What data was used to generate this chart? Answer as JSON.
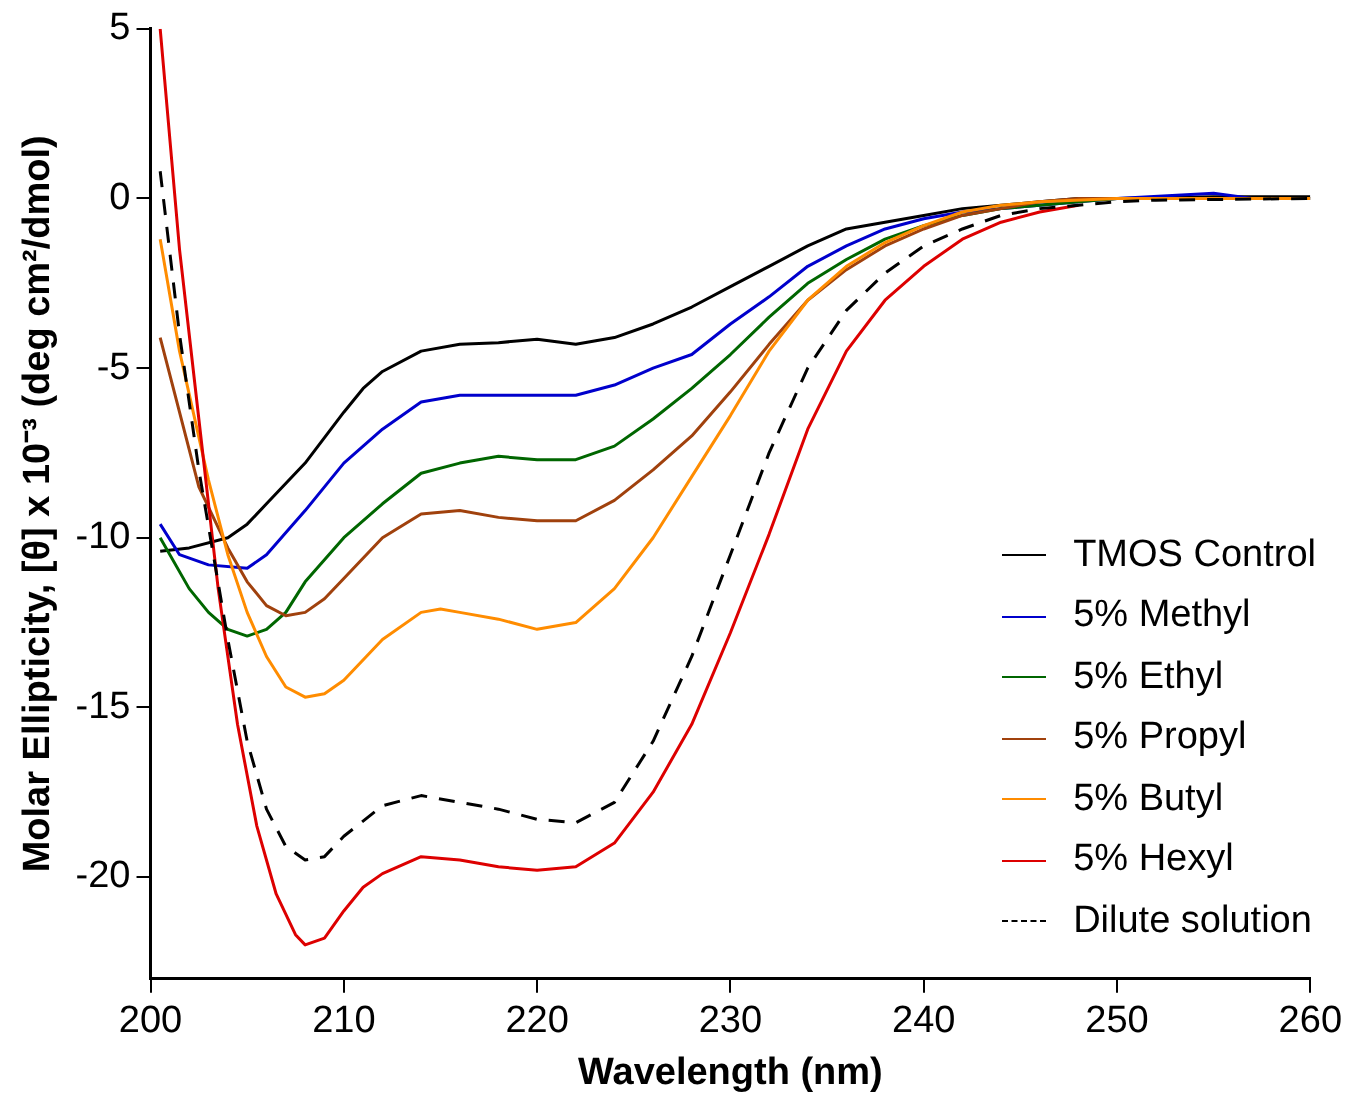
{
  "chart_data": {
    "type": "line",
    "xlabel": "Wavelength (nm)",
    "ylabel": "Molar Ellipticity, [θ] x 10⁻³ (deg cm²/dmol)",
    "xlim": [
      200,
      260
    ],
    "xticks": [
      200,
      210,
      220,
      230,
      240,
      250,
      260
    ],
    "ylim": [
      -23,
      5
    ],
    "yticks": [
      -20,
      -15,
      -10,
      -5,
      0,
      5
    ],
    "grid": false,
    "legend": "bottom right",
    "marker": "none",
    "series": [
      {
        "name": "TMOS Control",
        "color": "#000000",
        "x": [
          200.5,
          202,
          204,
          205,
          206,
          208,
          210,
          211,
          212,
          214,
          216,
          218,
          220,
          222,
          224,
          226,
          228,
          230,
          232,
          234,
          236,
          238,
          240,
          242,
          244,
          246,
          248,
          250,
          255,
          260
        ],
        "values": [
          -10.4,
          -10.3,
          -10.0,
          -9.6,
          -9.0,
          -7.8,
          -6.3,
          -5.6,
          -5.1,
          -4.5,
          -4.3,
          -4.25,
          -4.15,
          -4.3,
          -4.1,
          -3.7,
          -3.2,
          -2.6,
          -2.0,
          -1.4,
          -0.9,
          -0.7,
          -0.5,
          -0.3,
          -0.2,
          -0.1,
          0,
          0,
          0.05,
          0.05
        ]
      },
      {
        "name": "5% Methyl",
        "color": "#0000cc",
        "x": [
          200.5,
          201.5,
          203,
          205,
          206,
          208,
          210,
          212,
          214,
          216,
          218,
          220,
          222,
          224,
          226,
          228,
          230,
          232,
          234,
          236,
          238,
          240,
          242,
          244,
          246,
          248,
          250,
          255,
          257,
          260
        ],
        "values": [
          -9.6,
          -10.5,
          -10.8,
          -10.9,
          -10.5,
          -9.2,
          -7.8,
          -6.8,
          -6.0,
          -5.8,
          -5.8,
          -5.8,
          -5.8,
          -5.5,
          -5.0,
          -4.6,
          -3.7,
          -2.9,
          -2.0,
          -1.4,
          -0.9,
          -0.6,
          -0.4,
          -0.3,
          -0.2,
          -0.1,
          0,
          0.15,
          0,
          0
        ]
      },
      {
        "name": "5% Ethyl",
        "color": "#006600",
        "x": [
          200.5,
          202,
          203,
          204,
          205,
          206,
          207,
          208,
          210,
          212,
          214,
          216,
          218,
          220,
          222,
          224,
          226,
          228,
          230,
          232,
          234,
          236,
          238,
          240,
          242,
          244,
          246,
          248,
          250,
          260
        ],
        "values": [
          -10.0,
          -11.5,
          -12.2,
          -12.7,
          -12.9,
          -12.7,
          -12.2,
          -11.3,
          -10.0,
          -9.0,
          -8.1,
          -7.8,
          -7.6,
          -7.7,
          -7.7,
          -7.3,
          -6.5,
          -5.6,
          -4.6,
          -3.5,
          -2.5,
          -1.8,
          -1.2,
          -0.8,
          -0.5,
          -0.3,
          -0.2,
          -0.1,
          0,
          0
        ]
      },
      {
        "name": "5% Propyl",
        "color": "#a0410d",
        "x": [
          200.5,
          201.5,
          202.5,
          204,
          205,
          206,
          207,
          208,
          209,
          210,
          212,
          214,
          216,
          218,
          220,
          222,
          224,
          226,
          228,
          230,
          232,
          234,
          236,
          238,
          240,
          242,
          244,
          246,
          248,
          250,
          260
        ],
        "values": [
          -4.1,
          -6.3,
          -8.5,
          -10.3,
          -11.3,
          -12.0,
          -12.3,
          -12.2,
          -11.8,
          -11.2,
          -10.0,
          -9.3,
          -9.2,
          -9.4,
          -9.5,
          -9.5,
          -8.9,
          -8.0,
          -7.0,
          -5.7,
          -4.3,
          -3.0,
          -2.1,
          -1.4,
          -0.9,
          -0.5,
          -0.3,
          -0.1,
          0,
          0,
          0
        ]
      },
      {
        "name": "5% Butyl",
        "color": "#ff8c00",
        "x": [
          200.5,
          201.5,
          203,
          204,
          205,
          206,
          207,
          208,
          209,
          210,
          212,
          214,
          215,
          216,
          218,
          220,
          222,
          224,
          226,
          228,
          230,
          232,
          234,
          236,
          238,
          240,
          242,
          244,
          246,
          250,
          260
        ],
        "values": [
          -1.2,
          -4.5,
          -8.3,
          -10.5,
          -12.2,
          -13.5,
          -14.4,
          -14.7,
          -14.6,
          -14.2,
          -13.0,
          -12.2,
          -12.1,
          -12.2,
          -12.4,
          -12.7,
          -12.5,
          -11.5,
          -10.0,
          -8.2,
          -6.4,
          -4.5,
          -3.0,
          -2.0,
          -1.3,
          -0.8,
          -0.4,
          -0.2,
          -0.1,
          0,
          0
        ]
      },
      {
        "name": "5% Hexyl",
        "color": "#dd0000",
        "x": [
          200.5,
          201.5,
          202.5,
          203.5,
          204.5,
          205.5,
          206.5,
          207.5,
          208,
          209,
          210,
          211,
          212,
          214,
          216,
          218,
          220,
          222,
          224,
          226,
          228,
          230,
          232,
          234,
          236,
          238,
          240,
          242,
          244,
          246,
          248
        ],
        "values": [
          5,
          -1.5,
          -6.5,
          -11.5,
          -15.5,
          -18.5,
          -20.5,
          -21.7,
          -22.0,
          -21.8,
          -21.0,
          -20.3,
          -19.9,
          -19.4,
          -19.5,
          -19.7,
          -19.8,
          -19.7,
          -19.0,
          -17.5,
          -15.5,
          -12.8,
          -9.9,
          -6.8,
          -4.5,
          -3.0,
          -2.0,
          -1.2,
          -0.7,
          -0.4,
          -0.2
        ]
      },
      {
        "name": "Dilute solution",
        "color": "#000000",
        "line_style": "dashed",
        "x": [
          200.5,
          201.5,
          202.5,
          204,
          205,
          206,
          207,
          208,
          209,
          210,
          212,
          214,
          216,
          218,
          220,
          222,
          224,
          226,
          228,
          230,
          232,
          234,
          236,
          238,
          240,
          242,
          244,
          246,
          248,
          250,
          252,
          260
        ],
        "values": [
          0.8,
          -4,
          -8,
          -13,
          -16,
          -18,
          -19.1,
          -19.5,
          -19.4,
          -18.8,
          -17.9,
          -17.6,
          -17.8,
          -18.0,
          -18.3,
          -18.4,
          -17.8,
          -16.0,
          -13.5,
          -10.5,
          -7.5,
          -5.0,
          -3.3,
          -2.2,
          -1.4,
          -0.9,
          -0.5,
          -0.3,
          -0.2,
          -0.1,
          -0.05,
          0
        ]
      }
    ]
  }
}
